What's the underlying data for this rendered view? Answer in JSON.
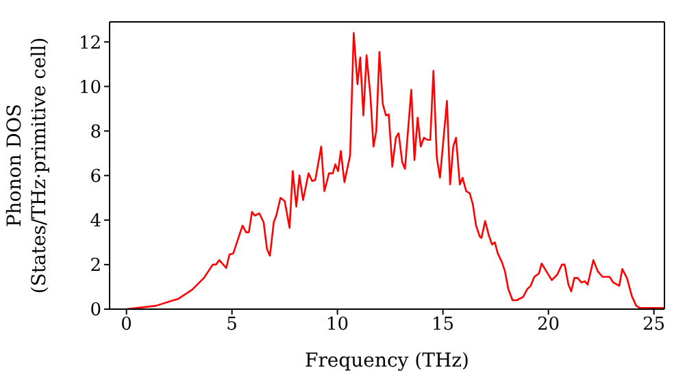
{
  "chart_data": {
    "type": "line",
    "xlabel": "Frequency (THz)",
    "ylabel": "Phonon DOS\n(States/THz·primitive cell)",
    "xlim": [
      -0.8,
      25.5
    ],
    "ylim": [
      0,
      12.9
    ],
    "xticks": [
      0,
      5,
      10,
      15,
      20,
      25
    ],
    "yticks": [
      0,
      2,
      4,
      6,
      8,
      10,
      12
    ],
    "grid": false,
    "legend": false,
    "marker": "none",
    "line_style": "solid",
    "series": [
      {
        "color": "#ff0000",
        "x": [
          0,
          1.39,
          2.47,
          3.12,
          3.67,
          4.09,
          4.24,
          4.4,
          4.73,
          4.88,
          5.06,
          5.5,
          5.67,
          5.8,
          5.95,
          6.08,
          6.3,
          6.5,
          6.66,
          6.8,
          6.98,
          7.1,
          7.3,
          7.5,
          7.73,
          7.88,
          8.05,
          8.2,
          8.37,
          8.63,
          8.8,
          8.95,
          9.23,
          9.38,
          9.6,
          9.78,
          9.9,
          10.03,
          10.16,
          10.33,
          10.6,
          10.77,
          10.95,
          11.08,
          11.23,
          11.38,
          11.56,
          11.71,
          11.84,
          11.99,
          12.15,
          12.3,
          12.43,
          12.6,
          12.77,
          12.9,
          13.07,
          13.2,
          13.5,
          13.65,
          13.8,
          13.95,
          14.1,
          14.28,
          14.4,
          14.55,
          14.71,
          14.86,
          15.19,
          15.34,
          15.49,
          15.62,
          15.8,
          15.93,
          16.1,
          16.27,
          16.42,
          16.57,
          16.75,
          16.83,
          17.0,
          17.18,
          17.33,
          17.46,
          17.6,
          17.8,
          17.94,
          18.1,
          18.3,
          18.5,
          18.8,
          19.0,
          19.16,
          19.33,
          19.55,
          19.68,
          19.9,
          20.16,
          20.42,
          20.64,
          20.77,
          20.95,
          21.08,
          21.23,
          21.38,
          21.56,
          21.73,
          21.86,
          22.13,
          22.34,
          22.56,
          22.9,
          23.07,
          23.36,
          23.5,
          23.72,
          23.95,
          24.16,
          24.33,
          25.5
        ],
        "values": [
          0,
          0.15,
          0.47,
          0.88,
          1.4,
          2.0,
          2.0,
          2.2,
          1.85,
          2.45,
          2.5,
          3.75,
          3.45,
          3.45,
          4.37,
          4.2,
          4.3,
          3.9,
          2.7,
          2.4,
          3.9,
          4.2,
          5.0,
          4.85,
          3.65,
          6.2,
          4.6,
          6.0,
          4.9,
          6.1,
          5.75,
          5.8,
          7.3,
          5.3,
          6.1,
          6.1,
          6.5,
          6.2,
          7.1,
          5.7,
          6.9,
          12.4,
          10.1,
          11.3,
          8.7,
          11.4,
          9.6,
          7.3,
          8.0,
          11.55,
          9.2,
          8.7,
          8.75,
          6.4,
          7.7,
          7.9,
          6.6,
          6.3,
          9.85,
          6.7,
          8.6,
          7.3,
          7.7,
          7.6,
          7.6,
          10.7,
          6.8,
          5.9,
          9.35,
          5.6,
          7.3,
          7.7,
          5.6,
          5.9,
          5.3,
          5.2,
          4.7,
          3.75,
          3.25,
          3.2,
          3.95,
          3.3,
          2.9,
          3.0,
          2.5,
          2.1,
          1.7,
          0.9,
          0.4,
          0.4,
          0.55,
          0.9,
          1.05,
          1.45,
          1.6,
          2.05,
          1.7,
          1.3,
          1.55,
          2.0,
          2.0,
          1.1,
          0.8,
          1.4,
          1.4,
          1.2,
          1.25,
          1.1,
          2.2,
          1.7,
          1.45,
          1.45,
          1.2,
          1.05,
          1.8,
          1.4,
          0.6,
          0.15,
          0.05,
          0.05
        ]
      }
    ]
  }
}
